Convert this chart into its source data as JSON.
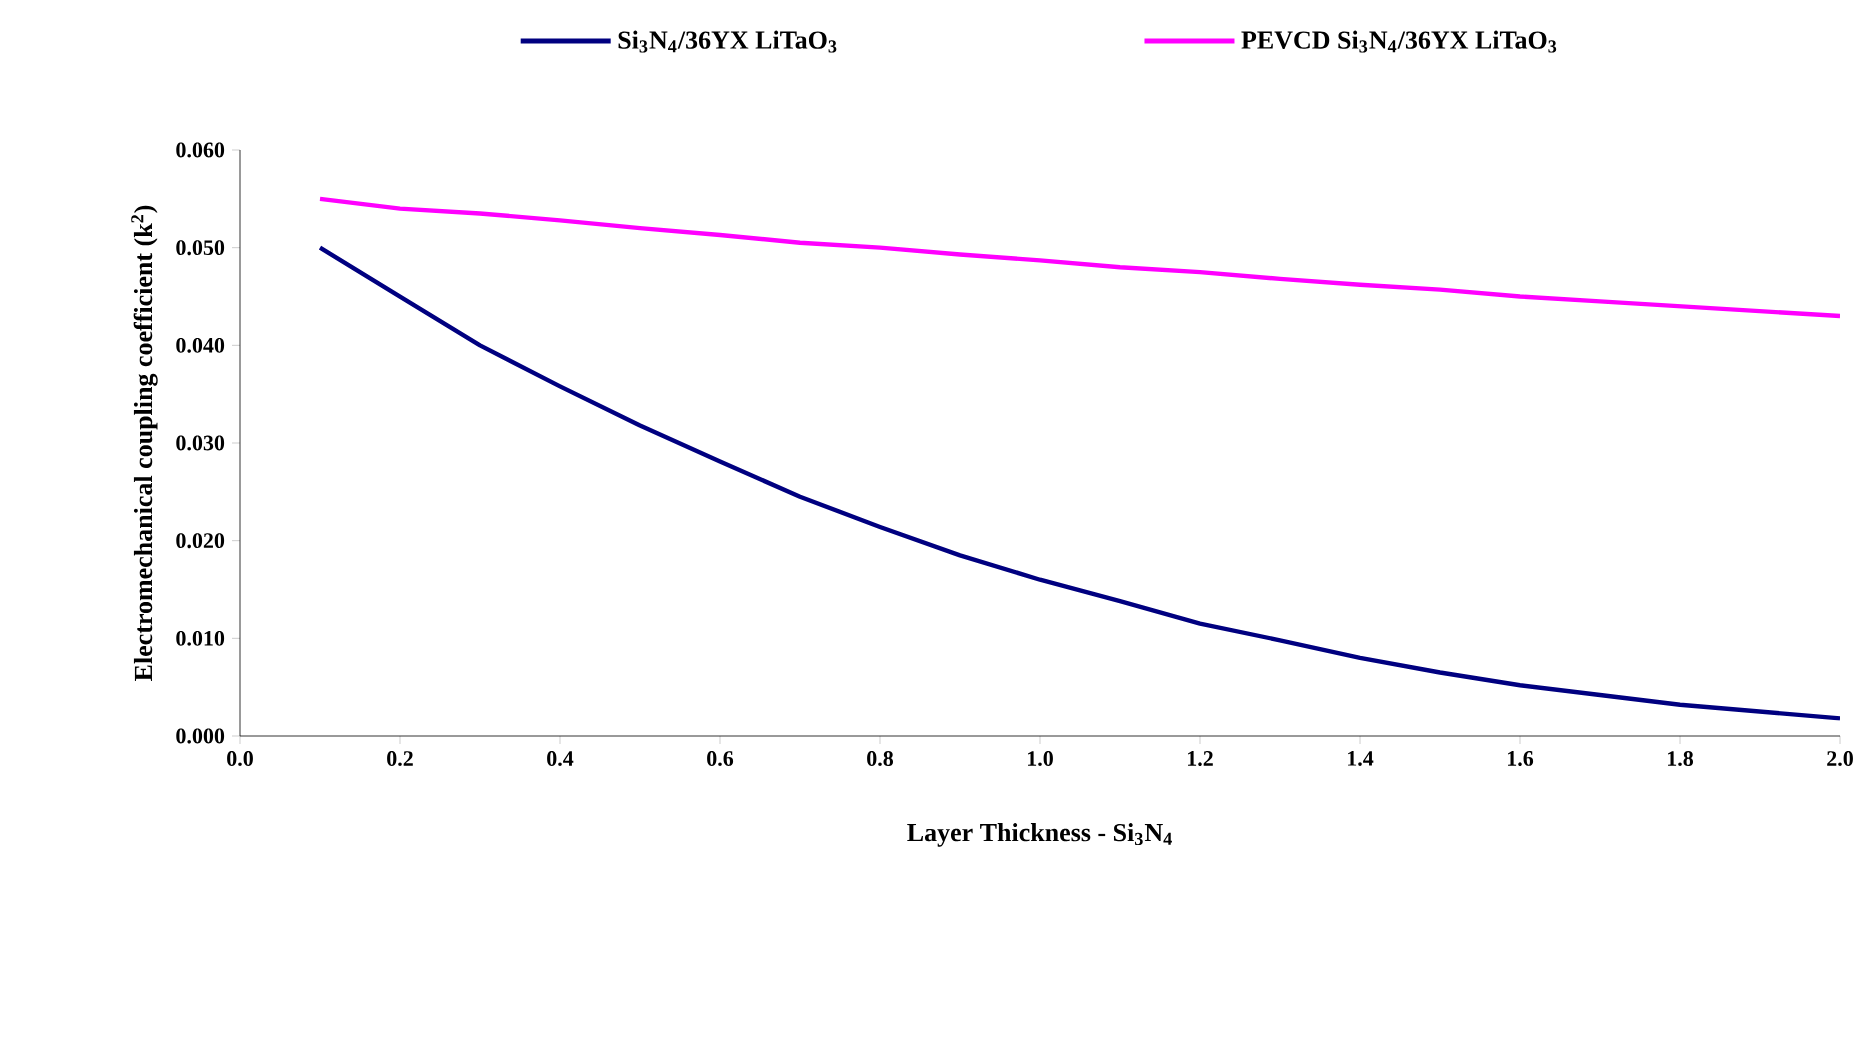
{
  "chart_data": {
    "type": "line",
    "xlabel": "Layer Thickness - Si$_{3}$N$_{4}$",
    "ylabel": "Electromechanical coupling coefficient  (k$^{2}$)",
    "x": [
      0.1,
      0.2,
      0.3,
      0.4,
      0.5,
      0.6,
      0.7,
      0.8,
      0.9,
      1.0,
      1.1,
      1.2,
      1.3,
      1.4,
      1.5,
      1.6,
      1.7,
      1.8,
      1.9,
      2.0
    ],
    "series": [
      {
        "name": "Si$_{3}$N$_{4}$/36YX LiTaO$_{3}$",
        "color": "#000080",
        "values": [
          0.05,
          0.045,
          0.04,
          0.0358,
          0.0318,
          0.0281,
          0.0245,
          0.0214,
          0.0185,
          0.016,
          0.0138,
          0.0115,
          0.0098,
          0.008,
          0.0065,
          0.0052,
          0.0042,
          0.0032,
          0.0025,
          0.0018
        ]
      },
      {
        "name": "PEVCD Si$_{3}$N$_{4}$/36YX LiTaO$_{3}$",
        "color": "#ff00ff",
        "values": [
          0.055,
          0.054,
          0.0535,
          0.0528,
          0.052,
          0.0513,
          0.0505,
          0.05,
          0.0493,
          0.0487,
          0.048,
          0.0475,
          0.0468,
          0.0462,
          0.0457,
          0.045,
          0.0445,
          0.044,
          0.0435,
          0.043
        ]
      }
    ],
    "xlim": [
      0,
      2.0
    ],
    "ylim": [
      0,
      0.06
    ],
    "xticks": [
      {
        "value": 0,
        "label": "0.0"
      },
      {
        "value": 0.2,
        "label": "0.2"
      },
      {
        "value": 0.4,
        "label": "0.4"
      },
      {
        "value": 0.6,
        "label": "0.6"
      },
      {
        "value": 0.8,
        "label": "0.8"
      },
      {
        "value": 1.0,
        "label": "1.0"
      },
      {
        "value": 1.2,
        "label": "1.2"
      },
      {
        "value": 1.4,
        "label": "1.4"
      },
      {
        "value": 1.6,
        "label": "1.6"
      },
      {
        "value": 1.8,
        "label": "1.8"
      },
      {
        "value": 2.0,
        "label": "2.0"
      }
    ],
    "yticks": [
      {
        "value": 0,
        "label": "0.000"
      },
      {
        "value": 0.01,
        "label": "0.010"
      },
      {
        "value": 0.02,
        "label": "0.020"
      },
      {
        "value": 0.03,
        "label": "0.030"
      },
      {
        "value": 0.04,
        "label": "0.040"
      },
      {
        "value": 0.05,
        "label": "0.050"
      },
      {
        "value": 0.06,
        "label": "0.060"
      }
    ],
    "grid": false,
    "legend": "top",
    "line_style": "solid"
  }
}
